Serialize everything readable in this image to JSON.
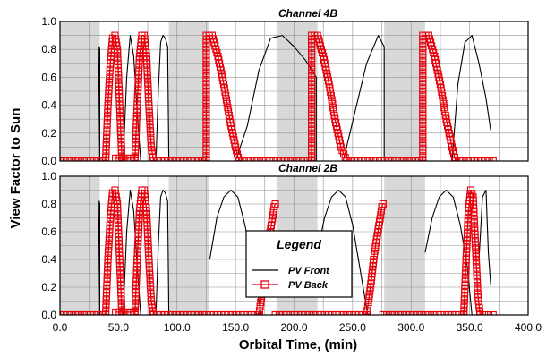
{
  "ylabel": "View Factor to Sun",
  "xlabel": "Orbital Time, (min)",
  "legend": {
    "title": "Legend",
    "entries": [
      "PV Front",
      "PV Back"
    ]
  },
  "colors": {
    "front": "#000000",
    "back": "#e8000b",
    "shade": "#d8d8d8",
    "grid": "#909090"
  },
  "x_ticks": [
    "0.0",
    "50.0",
    "100.0",
    "150.0",
    "200.0",
    "250.0",
    "300.0",
    "350.0",
    "400.0"
  ],
  "y_ticks": [
    "0.0",
    "0.2",
    "0.4",
    "0.6",
    "0.8",
    "1.0"
  ],
  "chart_data": [
    {
      "type": "line",
      "title": "Channel 4B",
      "xlim": [
        0,
        400
      ],
      "ylim": [
        0,
        1
      ],
      "eclipse_bands": [
        [
          0,
          34
        ],
        [
          93,
          127
        ],
        [
          185,
          220
        ],
        [
          277,
          312
        ]
      ],
      "series": [
        {
          "name": "PV Front",
          "segments": [
            {
              "x": [
                32.5,
                33.5,
                34,
                34
              ],
              "y": [
                0,
                0.82,
                0.8,
                0
              ]
            },
            {
              "x": [
                54,
                57,
                60,
                63,
                66,
                69
              ],
              "y": [
                0,
                0.6,
                0.9,
                0.75,
                0.35,
                0
              ]
            },
            {
              "x": [
                82,
                84,
                86,
                88,
                90,
                92,
                93
              ],
              "y": [
                0,
                0.5,
                0.85,
                0.9,
                0.88,
                0.82,
                0
              ]
            },
            {
              "x": [
                150,
                160,
                170,
                180,
                190,
                200,
                210,
                219,
                219
              ],
              "y": [
                0,
                0.25,
                0.65,
                0.88,
                0.9,
                0.82,
                0.72,
                0.6,
                0
              ]
            },
            {
              "x": [
                242,
                252,
                262,
                272,
                277,
                277
              ],
              "y": [
                0,
                0.35,
                0.7,
                0.9,
                0.82,
                0
              ]
            },
            {
              "x": [
                335,
                340,
                346,
                352,
                358,
                364,
                368
              ],
              "y": [
                0,
                0.55,
                0.85,
                0.9,
                0.7,
                0.45,
                0.22
              ]
            }
          ]
        },
        {
          "name": "PV Back",
          "segments": [
            {
              "x": [
                0,
                39,
                41,
                43,
                45,
                47,
                49,
                51,
                53
              ],
              "y": [
                0,
                0,
                0.4,
                0.7,
                0.88,
                0.9,
                0.8,
                0.4,
                0
              ]
            },
            {
              "x": [
                47.5,
                64
              ],
              "y": [
                0.02,
                0.02
              ]
            },
            {
              "x": [
                64,
                66,
                68,
                70,
                72,
                74,
                76,
                78,
                80
              ],
              "y": [
                0,
                0.4,
                0.75,
                0.9,
                0.9,
                0.75,
                0.4,
                0.1,
                0
              ]
            },
            {
              "x": [
                80,
                125
              ],
              "y": [
                0,
                0
              ]
            },
            {
              "x": [
                125,
                125,
                130,
                135,
                140,
                145,
                150,
                153
              ],
              "y": [
                0,
                0.9,
                0.9,
                0.75,
                0.55,
                0.3,
                0.1,
                0
              ]
            },
            {
              "x": [
                153,
                215
              ],
              "y": [
                0,
                0
              ]
            },
            {
              "x": [
                215,
                215,
                220,
                225,
                230,
                235,
                240,
                245
              ],
              "y": [
                0,
                0.9,
                0.9,
                0.75,
                0.55,
                0.3,
                0.1,
                0
              ]
            },
            {
              "x": [
                245,
                310
              ],
              "y": [
                0,
                0
              ]
            },
            {
              "x": [
                310,
                310,
                315,
                320,
                325,
                330,
                335,
                338
              ],
              "y": [
                0,
                0.9,
                0.9,
                0.75,
                0.55,
                0.3,
                0.1,
                0
              ]
            },
            {
              "x": [
                338,
                370
              ],
              "y": [
                0,
                0
              ]
            }
          ]
        }
      ]
    },
    {
      "type": "line",
      "title": "Channel 2B",
      "xlim": [
        0,
        400
      ],
      "ylim": [
        0,
        1
      ],
      "eclipse_bands": [
        [
          0,
          34
        ],
        [
          93,
          127
        ],
        [
          185,
          220
        ],
        [
          277,
          312
        ]
      ],
      "series": [
        {
          "name": "PV Front",
          "segments": [
            {
              "x": [
                32.5,
                33.5,
                34,
                34
              ],
              "y": [
                0,
                0.82,
                0.8,
                0
              ]
            },
            {
              "x": [
                54,
                57,
                60,
                63,
                66,
                69
              ],
              "y": [
                0,
                0.6,
                0.9,
                0.75,
                0.35,
                0
              ]
            },
            {
              "x": [
                82,
                84,
                86,
                88,
                90,
                92,
                93
              ],
              "y": [
                0,
                0.5,
                0.85,
                0.9,
                0.88,
                0.82,
                0
              ]
            },
            {
              "x": [
                128,
                134,
                140,
                146,
                152,
                158,
                166,
                172
              ],
              "y": [
                0.4,
                0.7,
                0.85,
                0.9,
                0.85,
                0.65,
                0.3,
                0
              ]
            },
            {
              "x": [
                220,
                226,
                232,
                238,
                244,
                250,
                256,
                263
              ],
              "y": [
                0.45,
                0.7,
                0.85,
                0.9,
                0.85,
                0.65,
                0.35,
                0
              ]
            },
            {
              "x": [
                312,
                318,
                324,
                330,
                336,
                342,
                348,
                352
              ],
              "y": [
                0.45,
                0.7,
                0.85,
                0.9,
                0.85,
                0.65,
                0.35,
                0
              ]
            },
            {
              "x": [
                358,
                361,
                364,
                366,
                368
              ],
              "y": [
                0.4,
                0.85,
                0.9,
                0.45,
                0.22
              ]
            }
          ]
        },
        {
          "name": "PV Back",
          "segments": [
            {
              "x": [
                0,
                39,
                41,
                43,
                45,
                47,
                49,
                51,
                53
              ],
              "y": [
                0,
                0,
                0.4,
                0.7,
                0.88,
                0.9,
                0.8,
                0.4,
                0
              ]
            },
            {
              "x": [
                47.5,
                64
              ],
              "y": [
                0.02,
                0.02
              ]
            },
            {
              "x": [
                64,
                66,
                68,
                70,
                72,
                74,
                76,
                78,
                80
              ],
              "y": [
                0,
                0.4,
                0.75,
                0.9,
                0.9,
                0.75,
                0.4,
                0.1,
                0
              ]
            },
            {
              "x": [
                80,
                170
              ],
              "y": [
                0,
                0
              ]
            },
            {
              "x": [
                170,
                172,
                174,
                176,
                178,
                180,
                182,
                183,
                184
              ],
              "y": [
                0,
                0.12,
                0.25,
                0.4,
                0.52,
                0.62,
                0.72,
                0.78,
                0.8
              ]
            },
            {
              "x": [
                184,
                262
              ],
              "y": [
                0,
                0
              ]
            },
            {
              "x": [
                262,
                264,
                266,
                268,
                270,
                272,
                274,
                275,
                276
              ],
              "y": [
                0,
                0.12,
                0.25,
                0.4,
                0.52,
                0.62,
                0.72,
                0.78,
                0.8
              ]
            },
            {
              "x": [
                276,
                345
              ],
              "y": [
                0,
                0
              ]
            },
            {
              "x": [
                345,
                347,
                349,
                351,
                353,
                355,
                357,
                359
              ],
              "y": [
                0,
                0.4,
                0.75,
                0.9,
                0.85,
                0.5,
                0.15,
                0
              ]
            },
            {
              "x": [
                359,
                370
              ],
              "y": [
                0,
                0
              ]
            }
          ]
        }
      ]
    }
  ]
}
